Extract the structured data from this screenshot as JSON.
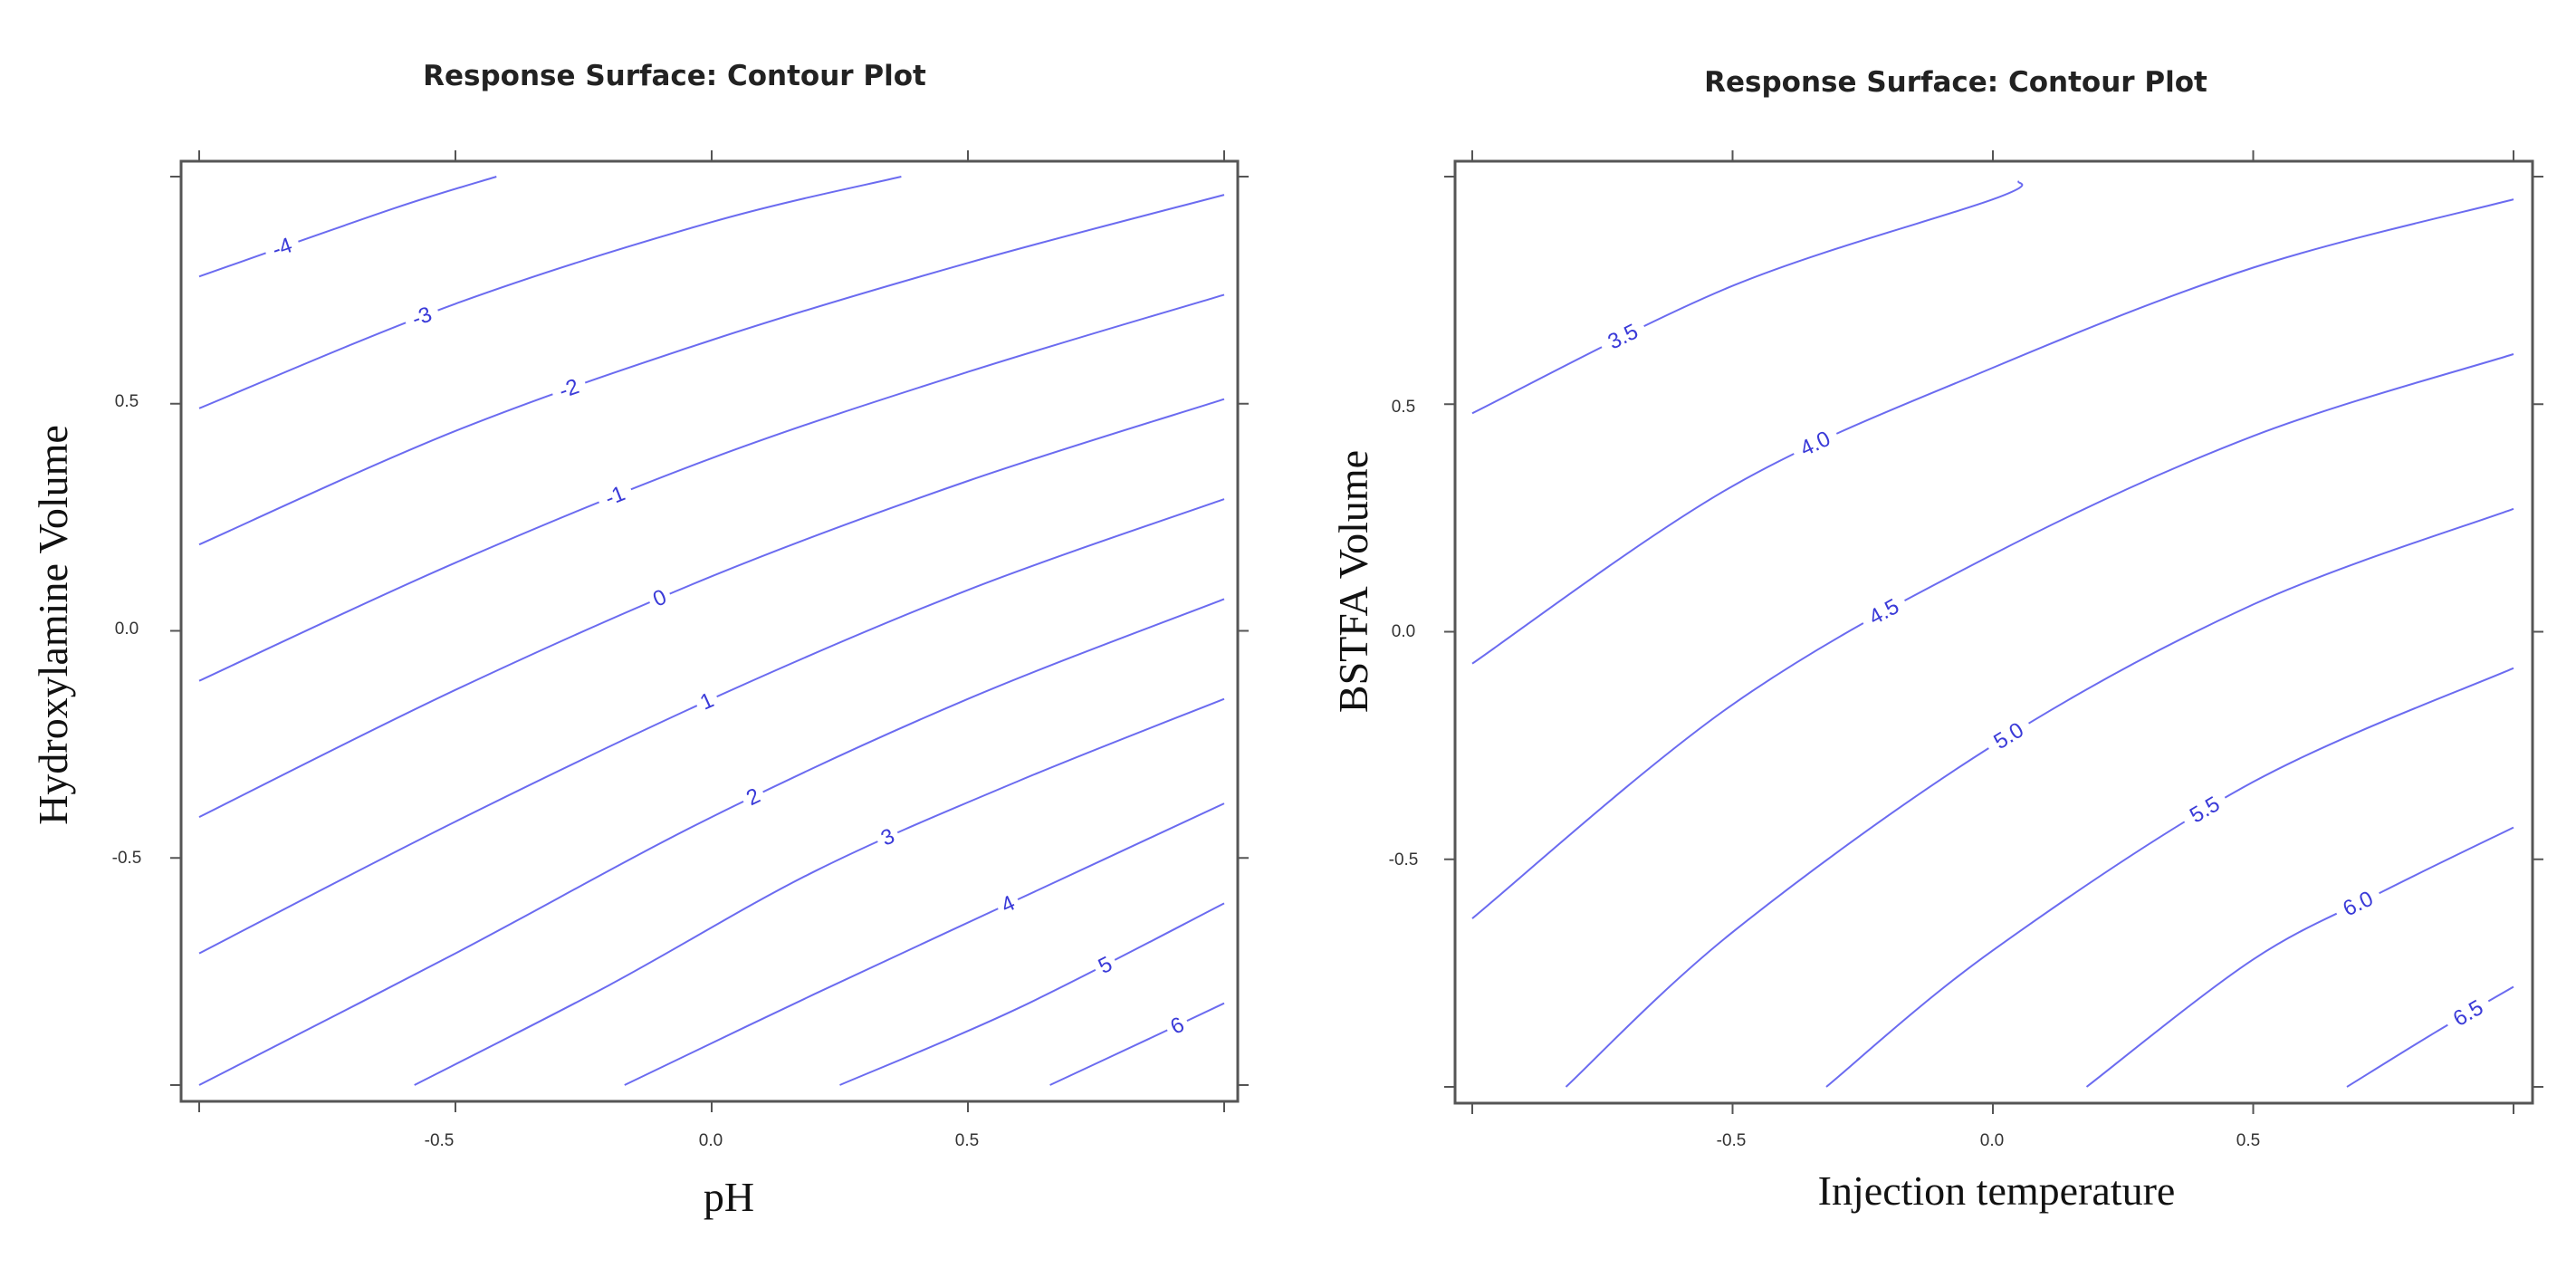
{
  "chart_data": [
    {
      "type": "contour",
      "title": "Response Surface: Contour Plot",
      "xlabel": "pH",
      "ylabel": "Hydroxylamine Volume",
      "xlim": [
        -1,
        1
      ],
      "ylim": [
        -1,
        1
      ],
      "x_ticks": [
        -0.5,
        0.0,
        0.5
      ],
      "y_ticks": [
        0.5,
        0.0,
        -0.5
      ],
      "x_tick_labels": [
        "-0.5",
        "0.0",
        "0.5"
      ],
      "y_tick_labels": [
        "0.5",
        "0.0",
        "-0.5"
      ],
      "line_color": "#6B6BF0",
      "label_color": "#3A3AD8",
      "levels": [
        {
          "label": "-4",
          "points": [
            [
              -1.0,
              0.78
            ],
            [
              -0.62,
              0.93
            ],
            [
              -0.42,
              1.0
            ]
          ]
        },
        {
          "label": "-3",
          "points": [
            [
              -1.0,
              0.49
            ],
            [
              -0.5,
              0.72
            ],
            [
              0.0,
              0.9
            ],
            [
              0.37,
              1.0
            ]
          ]
        },
        {
          "label": "-2",
          "points": [
            [
              -1.0,
              0.19
            ],
            [
              -0.5,
              0.44
            ],
            [
              0.0,
              0.64
            ],
            [
              0.5,
              0.81
            ],
            [
              1.0,
              0.96
            ]
          ]
        },
        {
          "label": "-1",
          "points": [
            [
              -1.0,
              -0.11
            ],
            [
              -0.5,
              0.15
            ],
            [
              0.0,
              0.38
            ],
            [
              0.5,
              0.57
            ],
            [
              1.0,
              0.74
            ]
          ]
        },
        {
          "label": "0",
          "points": [
            [
              -1.0,
              -0.41
            ],
            [
              -0.5,
              -0.13
            ],
            [
              0.0,
              0.12
            ],
            [
              0.5,
              0.33
            ],
            [
              1.0,
              0.51
            ]
          ]
        },
        {
          "label": "1",
          "points": [
            [
              -1.0,
              -0.71
            ],
            [
              -0.5,
              -0.42
            ],
            [
              0.0,
              -0.15
            ],
            [
              0.5,
              0.09
            ],
            [
              1.0,
              0.29
            ]
          ]
        },
        {
          "label": "2",
          "points": [
            [
              -1.0,
              -1.0
            ],
            [
              -0.5,
              -0.71
            ],
            [
              0.0,
              -0.41
            ],
            [
              0.5,
              -0.15
            ],
            [
              1.0,
              0.07
            ]
          ]
        },
        {
          "label": "3",
          "points": [
            [
              -0.58,
              -1.0
            ],
            [
              -0.2,
              -0.78
            ],
            [
              0.2,
              -0.53
            ],
            [
              0.6,
              -0.33
            ],
            [
              1.0,
              -0.15
            ]
          ]
        },
        {
          "label": "4",
          "points": [
            [
              -0.17,
              -1.0
            ],
            [
              0.2,
              -0.8
            ],
            [
              0.6,
              -0.59
            ],
            [
              1.0,
              -0.38
            ]
          ]
        },
        {
          "label": "5",
          "points": [
            [
              0.25,
              -1.0
            ],
            [
              0.6,
              -0.83
            ],
            [
              1.0,
              -0.6
            ]
          ]
        },
        {
          "label": "6",
          "points": [
            [
              0.66,
              -1.0
            ],
            [
              0.85,
              -0.9
            ],
            [
              1.0,
              -0.82
            ]
          ]
        }
      ]
    },
    {
      "type": "contour",
      "title": "Response Surface: Contour Plot",
      "xlabel": "Injection temperature",
      "ylabel": "BSTFA   Volume",
      "xlim": [
        -1,
        1
      ],
      "ylim": [
        -1,
        1
      ],
      "x_ticks": [
        -0.5,
        0.0,
        0.5
      ],
      "y_ticks": [
        0.5,
        0.0,
        -0.5
      ],
      "x_tick_labels": [
        "-0.5",
        "0.0",
        "0.5"
      ],
      "y_tick_labels": [
        "0.5",
        "0.0",
        "-0.5"
      ],
      "line_color": "#6B6BF0",
      "label_color": "#3A3AD8",
      "levels": [
        {
          "label": "3.5",
          "points": [
            [
              -1.0,
              0.48
            ],
            [
              -0.5,
              0.76
            ],
            [
              0.0,
              0.95
            ],
            [
              0.05,
              0.99
            ]
          ]
        },
        {
          "label": "4.0",
          "points": [
            [
              -1.0,
              -0.07
            ],
            [
              -0.5,
              0.32
            ],
            [
              0.0,
              0.58
            ],
            [
              0.5,
              0.8
            ],
            [
              1.0,
              0.95
            ]
          ]
        },
        {
          "label": "4.5",
          "points": [
            [
              -1.0,
              -0.63
            ],
            [
              -0.5,
              -0.16
            ],
            [
              0.0,
              0.17
            ],
            [
              0.5,
              0.43
            ],
            [
              1.0,
              0.61
            ]
          ]
        },
        {
          "label": "5.0",
          "points": [
            [
              -0.82,
              -1.0
            ],
            [
              -0.5,
              -0.66
            ],
            [
              0.0,
              -0.25
            ],
            [
              0.5,
              0.06
            ],
            [
              1.0,
              0.27
            ]
          ]
        },
        {
          "label": "5.5",
          "points": [
            [
              -0.32,
              -1.0
            ],
            [
              0.0,
              -0.7
            ],
            [
              0.5,
              -0.33
            ],
            [
              1.0,
              -0.08
            ]
          ]
        },
        {
          "label": "6.0",
          "points": [
            [
              0.18,
              -1.0
            ],
            [
              0.5,
              -0.72
            ],
            [
              0.75,
              -0.57
            ],
            [
              1.0,
              -0.43
            ]
          ]
        },
        {
          "label": "6.5",
          "points": [
            [
              0.68,
              -1.0
            ],
            [
              0.85,
              -0.88
            ],
            [
              1.0,
              -0.78
            ]
          ]
        }
      ]
    }
  ]
}
